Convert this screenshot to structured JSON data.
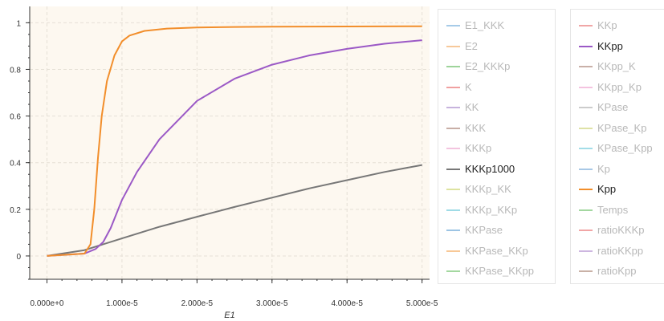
{
  "chart_data": {
    "type": "line",
    "xlabel": "E1",
    "ylabel": "",
    "xlim": [
      -2.3e-06,
      5.1e-05
    ],
    "ylim": [
      -0.1,
      1.07
    ],
    "x_ticks": [
      0,
      1e-05,
      2e-05,
      3e-05,
      4e-05,
      5e-05
    ],
    "x_tick_labels": [
      "0.000e+0",
      "1.000e-5",
      "2.000e-5",
      "3.000e-5",
      "4.000e-5",
      "5.000e-5"
    ],
    "y_ticks": [
      0,
      0.2,
      0.4,
      0.6,
      0.8,
      1
    ],
    "y_tick_labels": [
      "0",
      "0.2",
      "0.4",
      "0.6",
      "0.8",
      "1"
    ],
    "grid": true,
    "background": "#fdf8f0",
    "legend_placement": "right (two columns)",
    "series": [
      {
        "name": "KKKp1000",
        "color": "#777777",
        "active": true,
        "x": [
          0,
          5e-06,
          1e-05,
          1.5e-05,
          2e-05,
          2.5e-05,
          3e-05,
          3.5e-05,
          4e-05,
          4.5e-05,
          5e-05
        ],
        "y": [
          0,
          0.025,
          0.075,
          0.125,
          0.168,
          0.21,
          0.25,
          0.29,
          0.325,
          0.36,
          0.39
        ]
      },
      {
        "name": "KKpp",
        "color": "#9b59c6",
        "active": true,
        "x": [
          0,
          5e-06,
          6.5e-06,
          7.5e-06,
          8.5e-06,
          1e-05,
          1.2e-05,
          1.5e-05,
          2e-05,
          2.5e-05,
          3e-05,
          3.5e-05,
          4e-05,
          4.5e-05,
          5e-05
        ],
        "y": [
          0,
          0.01,
          0.03,
          0.06,
          0.12,
          0.24,
          0.36,
          0.5,
          0.665,
          0.76,
          0.82,
          0.86,
          0.888,
          0.91,
          0.925
        ]
      },
      {
        "name": "Kpp",
        "color": "#f28e2b",
        "active": true,
        "x": [
          0,
          5e-06,
          5.8e-06,
          6.3e-06,
          6.8e-06,
          7.3e-06,
          8e-06,
          9e-06,
          1e-05,
          1.1e-05,
          1.3e-05,
          1.6e-05,
          2e-05,
          2.5e-05,
          3e-05,
          4e-05,
          5e-05
        ],
        "y": [
          0,
          0.01,
          0.05,
          0.2,
          0.42,
          0.6,
          0.75,
          0.86,
          0.92,
          0.945,
          0.965,
          0.975,
          0.98,
          0.982,
          0.983,
          0.984,
          0.985
        ]
      }
    ]
  },
  "legend": {
    "columns": [
      [
        {
          "label": "E1_KKK",
          "color": "#a6cbe8",
          "active": false
        },
        {
          "label": "E2",
          "color": "#f7c99a",
          "active": false
        },
        {
          "label": "E2_KKKp",
          "color": "#9ed49a",
          "active": false
        },
        {
          "label": "K",
          "color": "#f0a0a0",
          "active": false
        },
        {
          "label": "KK",
          "color": "#c7b3dd",
          "active": false
        },
        {
          "label": "KKK",
          "color": "#c8aea6",
          "active": false
        },
        {
          "label": "KKKp",
          "color": "#f3c4df",
          "active": false
        },
        {
          "label": "KKKp1000",
          "color": "#777777",
          "active": true
        },
        {
          "label": "KKKp_KK",
          "color": "#dde3a0",
          "active": false
        },
        {
          "label": "KKKp_KKp",
          "color": "#9fdbe6",
          "active": false
        },
        {
          "label": "KKPase",
          "color": "#9cc4e4",
          "active": false
        },
        {
          "label": "KKPase_KKp",
          "color": "#f8c896",
          "active": false
        },
        {
          "label": "KKPase_KKpp",
          "color": "#a4d8a0",
          "active": false
        }
      ],
      [
        {
          "label": "KKp",
          "color": "#f0a6a6",
          "active": false
        },
        {
          "label": "KKpp",
          "color": "#9b59c6",
          "active": true
        },
        {
          "label": "KKpp_K",
          "color": "#c9b0a8",
          "active": false
        },
        {
          "label": "KKpp_Kp",
          "color": "#f4c3e0",
          "active": false
        },
        {
          "label": "KPase",
          "color": "#cccccc",
          "active": false
        },
        {
          "label": "KPase_Kp",
          "color": "#dee2a6",
          "active": false
        },
        {
          "label": "KPase_Kpp",
          "color": "#a3dde8",
          "active": false
        },
        {
          "label": "Kp",
          "color": "#a8c8e6",
          "active": false
        },
        {
          "label": "Kpp",
          "color": "#f28e2b",
          "active": true
        },
        {
          "label": "Temps",
          "color": "#a3d7a0",
          "active": false
        },
        {
          "label": "ratioKKKp",
          "color": "#f1a5a5",
          "active": false
        },
        {
          "label": "ratioKKpp",
          "color": "#cdb6e0",
          "active": false
        },
        {
          "label": "ratioKpp",
          "color": "#c9b1a6",
          "active": false
        }
      ]
    ]
  }
}
